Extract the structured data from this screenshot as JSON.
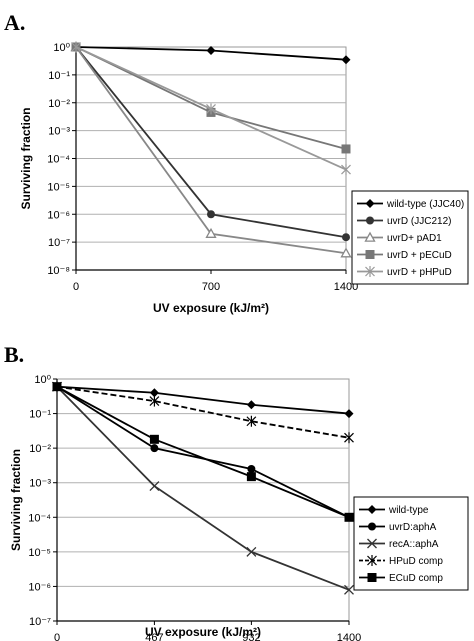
{
  "chart_data": [
    {
      "type": "line",
      "panel_label": "A.",
      "xlabel": "UV exposure (kJ/m²)",
      "ylabel": "Surviving fraction",
      "x": [
        0,
        700,
        1400
      ],
      "x_tick_labels": [
        "0",
        "700",
        "1400"
      ],
      "y_tick_labels": [
        "10⁰",
        "10⁻¹",
        "10⁻²",
        "10⁻³",
        "10⁻⁴",
        "10⁻⁵",
        "10⁻⁶",
        "10⁻⁷",
        "10⁻⁸"
      ],
      "yscale": "log",
      "ylim": [
        1e-08,
        1
      ],
      "grid": true,
      "legend_position": "right",
      "series": [
        {
          "name": "wild-type (JJC40)",
          "values": [
            1,
            0.75,
            0.35
          ],
          "color": "#000000",
          "marker": "diamond"
        },
        {
          "name": "uvrD (JJC212)",
          "values": [
            1,
            1e-06,
            1.5e-07
          ],
          "color": "#333333",
          "marker": "circle"
        },
        {
          "name": "uvrD+ pAD1",
          "values": [
            1,
            2e-07,
            4e-08
          ],
          "color": "#888888",
          "marker": "triangle-open"
        },
        {
          "name": "uvrD + pECuD",
          "values": [
            1,
            0.0045,
            0.00022
          ],
          "color": "#777777",
          "marker": "square"
        },
        {
          "name": "uvrD + pHPuD",
          "values": [
            1,
            0.006,
            4e-05
          ],
          "color": "#999999",
          "marker": "star"
        }
      ]
    },
    {
      "type": "line",
      "panel_label": "B.",
      "xlabel": "UV exposure (kJ/m²)",
      "ylabel": "Surviving fraction",
      "x": [
        0,
        467,
        932,
        1400
      ],
      "x_tick_labels": [
        "0",
        "467",
        "932",
        "1400"
      ],
      "y_tick_labels": [
        "10⁰",
        "10⁻¹",
        "10⁻²",
        "10⁻³",
        "10⁻⁴",
        "10⁻⁵",
        "10⁻⁶",
        "10⁻⁷"
      ],
      "yscale": "log",
      "ylim": [
        1e-07,
        1
      ],
      "grid": true,
      "legend_position": "right",
      "series": [
        {
          "name": "wild-type",
          "values": [
            0.6,
            0.4,
            0.18,
            0.1
          ],
          "color": "#000000",
          "marker": "diamond"
        },
        {
          "name": "uvrD:aphA",
          "values": [
            0.6,
            0.01,
            0.0025,
            0.0001
          ],
          "color": "#000000",
          "marker": "circle"
        },
        {
          "name": "recA::aphA",
          "values": [
            0.6,
            0.0008,
            1e-05,
            8e-07
          ],
          "color": "#333333",
          "marker": "x"
        },
        {
          "name": "HPuD comp",
          "values": [
            0.6,
            0.23,
            0.06,
            0.02
          ],
          "color": "#000000",
          "marker": "star",
          "dash": "6,3"
        },
        {
          "name": "ECuD comp",
          "values": [
            0.6,
            0.018,
            0.0015,
            0.0001
          ],
          "color": "#000000",
          "marker": "square"
        }
      ]
    }
  ]
}
